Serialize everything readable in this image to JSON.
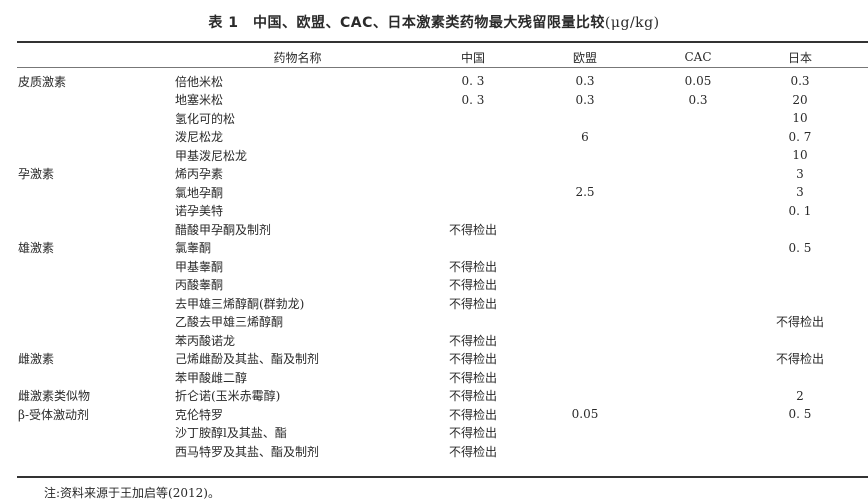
{
  "title": {
    "label": "表 1　中国、欧盟、CAC、日本激素类药物最大残留限量比较",
    "unit": "(μg/kg)"
  },
  "headers": [
    "",
    "药物名称",
    "中国",
    "欧盟",
    "CAC",
    "日本"
  ],
  "rows": [
    [
      "皮质激素",
      "倍他米松",
      "0. 3",
      "0.3",
      "0.05",
      "0.3"
    ],
    [
      "",
      "地塞米松",
      "0. 3",
      "0.3",
      "0.3",
      "20"
    ],
    [
      "",
      "氢化可的松",
      "",
      "",
      "",
      "10"
    ],
    [
      "",
      "泼尼松龙",
      "",
      "6",
      "",
      "0. 7"
    ],
    [
      "",
      "甲基泼尼松龙",
      "",
      "",
      "",
      "10"
    ],
    [
      "孕激素",
      "烯丙孕素",
      "",
      "",
      "",
      "3"
    ],
    [
      "",
      "氯地孕酮",
      "",
      "2.5",
      "",
      "3"
    ],
    [
      "",
      "诺孕美特",
      "",
      "",
      "",
      "0. 1"
    ],
    [
      "",
      "醋酸甲孕酮及制剂",
      "不得检出",
      "",
      "",
      ""
    ],
    [
      "雄激素",
      "氯睾酮",
      "",
      "",
      "",
      "0. 5"
    ],
    [
      "",
      "甲基睾酮",
      "不得检出",
      "",
      "",
      ""
    ],
    [
      "",
      "丙酸睾酮",
      "不得检出",
      "",
      "",
      ""
    ],
    [
      "",
      "去甲雄三烯醇酮(群勃龙)",
      "不得检出",
      "",
      "",
      ""
    ],
    [
      "",
      "乙酸去甲雄三烯醇酮",
      "",
      "",
      "",
      "不得检出"
    ],
    [
      "",
      "苯丙酸诺龙",
      "不得检出",
      "",
      "",
      ""
    ],
    [
      "雌激素",
      "己烯雌酚及其盐、酯及制剂",
      "不得检出",
      "",
      "",
      "不得检出"
    ],
    [
      "",
      "苯甲酸雌二醇",
      "不得检出",
      "",
      "",
      ""
    ],
    [
      "雌激素类似物",
      "折仑诺(玉米赤霉醇)",
      "不得检出",
      "",
      "",
      "2"
    ],
    [
      "β-受体激动剂",
      "克伦特罗",
      "不得检出",
      "0.05",
      "",
      "0. 5"
    ],
    [
      "",
      "沙丁胺醇l及其盐、酯",
      "不得检出",
      "",
      "",
      ""
    ],
    [
      "",
      "西马特罗及其盐、酯及制剂",
      "不得检出",
      "",
      "",
      ""
    ]
  ],
  "note": "注:资料来源于王加启等(2012)。"
}
